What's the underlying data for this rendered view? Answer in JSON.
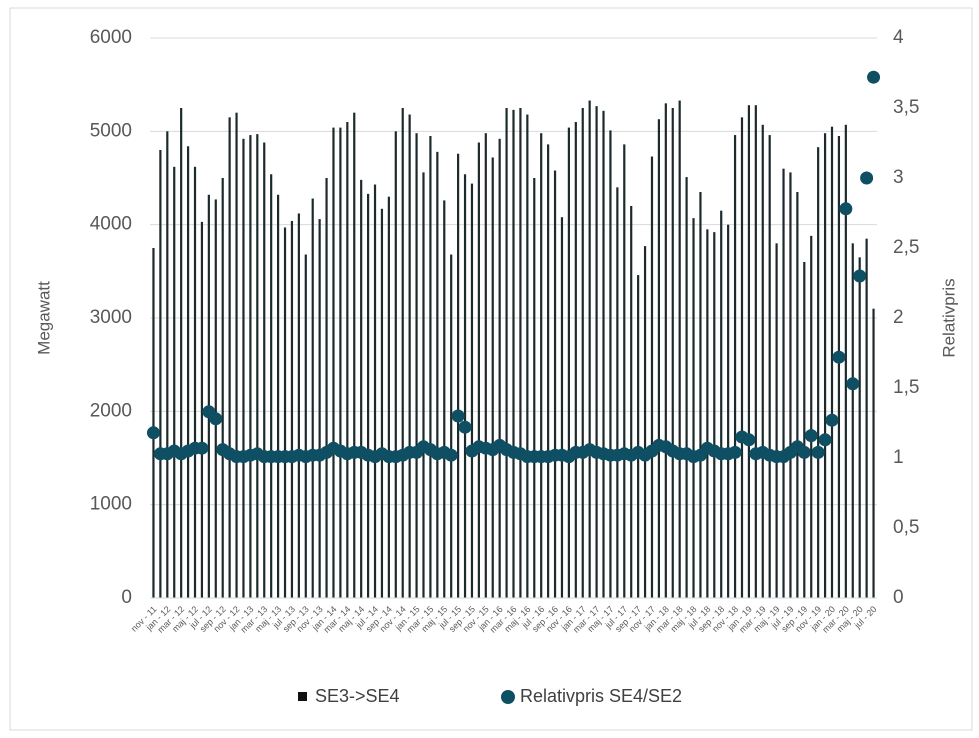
{
  "chart_data": {
    "type": "bar-dot",
    "y_label": "Megawatt",
    "y2_label": "Relativpris",
    "categories": [
      "nov - 11",
      null,
      "jan - 12",
      null,
      "mar - 12",
      null,
      "maj - 12",
      null,
      "jul - 12",
      null,
      "sep - 12",
      null,
      "nov - 12",
      null,
      "jan - 13",
      null,
      "mar - 13",
      null,
      "maj - 13",
      null,
      "jul - 13",
      null,
      "sep - 13",
      null,
      "nov - 13",
      null,
      "jan - 14",
      null,
      "mar - 14",
      null,
      "maj - 14",
      null,
      "jul - 14",
      null,
      "sep - 14",
      null,
      "nov - 14",
      null,
      "jan - 15",
      null,
      "mar - 15",
      null,
      "maj - 15",
      null,
      "jul - 15",
      null,
      "sep - 15",
      null,
      "nov - 15",
      null,
      "jan - 16",
      null,
      "mar - 16",
      null,
      "maj - 16",
      null,
      "jul - 16",
      null,
      "sep - 16",
      null,
      "nov - 16",
      null,
      "jan - 17",
      null,
      "mar - 17",
      null,
      "maj - 17",
      null,
      "jul - 17",
      null,
      "sep - 17",
      null,
      "nov - 17",
      null,
      "jan - 18",
      null,
      "mar - 18",
      null,
      "maj - 18",
      null,
      "jul - 18",
      null,
      "sep - 18",
      null,
      "nov - 18",
      null,
      "jan - 19",
      null,
      "mar - 19",
      null,
      "maj - 19",
      null,
      "jul - 19",
      null,
      "sep - 19",
      null,
      "nov - 19",
      null,
      "jan - 20",
      null,
      "mar - 20",
      null,
      "maj - 20",
      null,
      "jul - 20"
    ],
    "series": [
      {
        "name": "SE3->SE4",
        "color": "#1c2a2c",
        "values": [
          3750,
          4800,
          5000,
          4620,
          5250,
          4840,
          4620,
          4030,
          4320,
          4270,
          4500,
          5150,
          5200,
          4920,
          4960,
          4970,
          4880,
          4540,
          4320,
          3970,
          4040,
          4120,
          3680,
          4280,
          4060,
          4500,
          5040,
          5040,
          5100,
          5200,
          4480,
          4330,
          4430,
          4170,
          4300,
          5000,
          5250,
          5180,
          4980,
          4560,
          4950,
          4780,
          4260,
          3680,
          4760,
          4540,
          4440,
          4880,
          4980,
          4720,
          4920,
          5250,
          5230,
          5250,
          5180,
          4500,
          4980,
          4860,
          4580,
          4080,
          5040,
          5100,
          5250,
          5330,
          5270,
          5220,
          5010,
          4400,
          4860,
          4200,
          3460,
          3770,
          4730,
          5130,
          5300,
          5250,
          5330,
          4510,
          4070,
          4350,
          3950,
          3920,
          4150,
          4000,
          4960,
          5150,
          5280,
          5280,
          5070,
          4960,
          3800,
          4600,
          4560,
          4350,
          3600,
          3880,
          4830,
          4980,
          5050,
          4950,
          5070,
          3800,
          3650,
          3850,
          3100
        ]
      },
      {
        "name": "Relativpris SE4/SE2",
        "color": "#0e4f63",
        "axis": "y2",
        "values": [
          1.18,
          1.03,
          1.03,
          1.05,
          1.03,
          1.05,
          1.07,
          1.07,
          1.33,
          1.28,
          1.06,
          1.03,
          1.01,
          1.01,
          1.02,
          1.03,
          1.01,
          1.01,
          1.01,
          1.01,
          1.01,
          1.02,
          1.01,
          1.02,
          1.02,
          1.04,
          1.07,
          1.05,
          1.03,
          1.04,
          1.04,
          1.02,
          1.01,
          1.03,
          1.01,
          1.01,
          1.02,
          1.04,
          1.04,
          1.08,
          1.06,
          1.03,
          1.04,
          1.02,
          1.3,
          1.22,
          1.05,
          1.08,
          1.07,
          1.06,
          1.09,
          1.06,
          1.04,
          1.03,
          1.01,
          1.01,
          1.01,
          1.01,
          1.02,
          1.02,
          1.01,
          1.04,
          1.04,
          1.06,
          1.04,
          1.03,
          1.02,
          1.02,
          1.03,
          1.02,
          1.04,
          1.02,
          1.05,
          1.09,
          1.08,
          1.05,
          1.03,
          1.03,
          1.01,
          1.02,
          1.07,
          1.05,
          1.03,
          1.03,
          1.04,
          1.15,
          1.13,
          1.03,
          1.04,
          1.02,
          1.01,
          1.01,
          1.04,
          1.08,
          1.04,
          1.16,
          1.04,
          1.13,
          1.27,
          1.72,
          2.78,
          1.53,
          2.3,
          3.0,
          3.72
        ]
      }
    ],
    "ylim": [
      0,
      6000
    ],
    "yticks": [
      0,
      1000,
      2000,
      3000,
      4000,
      5000,
      6000
    ],
    "y2lim": [
      0,
      4
    ],
    "y2ticks": [
      0,
      {
        "value": 0.5,
        "label": "0,5"
      },
      1,
      {
        "value": 1.5,
        "label": "1,5"
      },
      2,
      {
        "value": 2.5,
        "label": "2,5"
      },
      3,
      {
        "value": 3.5,
        "label": "3,5"
      },
      4
    ],
    "grid": true,
    "legend": "bottom"
  }
}
